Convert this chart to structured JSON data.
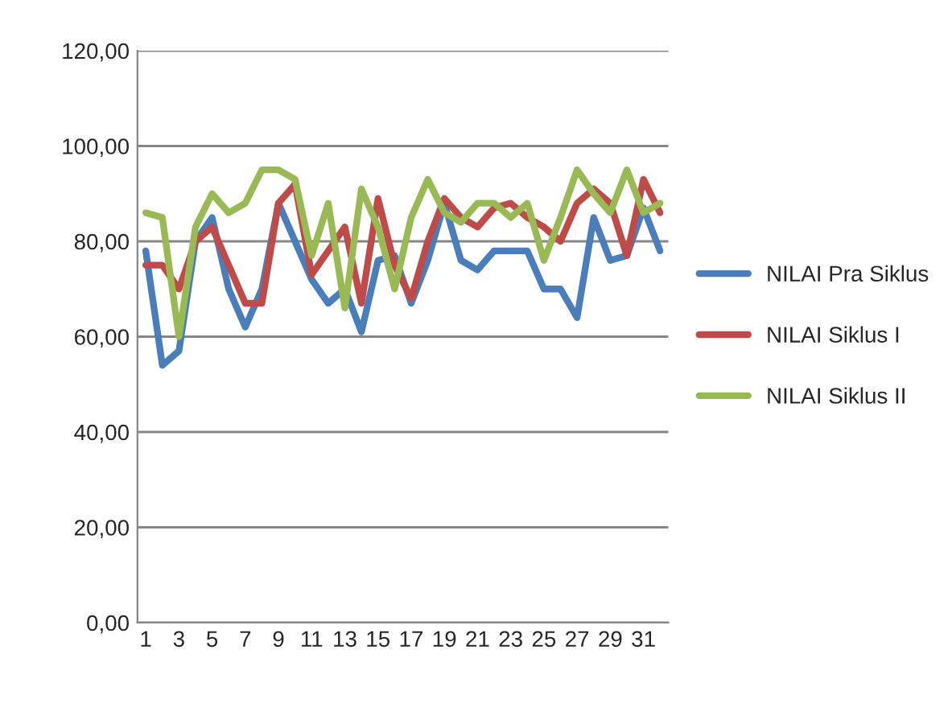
{
  "chart_data": {
    "type": "line",
    "x": [
      1,
      2,
      3,
      4,
      5,
      6,
      7,
      8,
      9,
      10,
      11,
      12,
      13,
      14,
      15,
      16,
      17,
      18,
      19,
      20,
      21,
      22,
      23,
      24,
      25,
      26,
      27,
      28,
      29,
      30,
      31,
      32
    ],
    "xlim": [
      0.5,
      32.5
    ],
    "xticks": [
      1,
      3,
      5,
      7,
      9,
      11,
      13,
      15,
      17,
      19,
      21,
      23,
      25,
      27,
      29,
      31
    ],
    "ylim": [
      0,
      120
    ],
    "yticks": [
      {
        "value": 0,
        "label": "0,00"
      },
      {
        "value": 20,
        "label": "20,00"
      },
      {
        "value": 40,
        "label": "40,00"
      },
      {
        "value": 60,
        "label": "60,00"
      },
      {
        "value": 80,
        "label": "80,00"
      },
      {
        "value": 100,
        "label": "100,00"
      },
      {
        "value": 120,
        "label": "120,00"
      }
    ],
    "grid": "y",
    "legend": "right",
    "marker": "none",
    "line_style": "solid",
    "series": [
      {
        "name": "NILAI Pra Siklus",
        "color": "#4a7ebb",
        "values": [
          78,
          54,
          57,
          80,
          85,
          70,
          62,
          70,
          88,
          80,
          72,
          67,
          70,
          61,
          76,
          77,
          67,
          76,
          88,
          76,
          74,
          78,
          78,
          78,
          70,
          70,
          64,
          85,
          76,
          77,
          87,
          78
        ]
      },
      {
        "name": "NILAI Siklus I",
        "color": "#be4b48",
        "values": [
          75,
          75,
          70,
          80,
          83,
          75,
          67,
          67,
          88,
          92,
          73,
          78,
          83,
          67,
          89,
          75,
          68,
          80,
          89,
          85,
          83,
          87,
          88,
          85,
          83,
          80,
          88,
          91,
          88,
          77,
          93,
          86
        ]
      },
      {
        "name": "NILAI Siklus II",
        "color": "#98b954",
        "values": [
          86,
          85,
          60,
          83,
          90,
          86,
          88,
          95,
          95,
          93,
          77,
          88,
          66,
          91,
          83,
          70,
          85,
          93,
          86,
          84,
          88,
          88,
          85,
          88,
          76,
          85,
          95,
          90,
          86,
          95,
          86,
          88
        ]
      }
    ]
  }
}
